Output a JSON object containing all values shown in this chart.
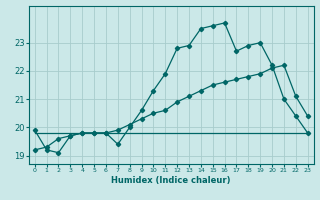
{
  "xlabel": "Humidex (Indice chaleur)",
  "bg_color": "#cbe8e8",
  "grid_color": "#a8cccc",
  "line_color": "#006666",
  "xlim": [
    -0.5,
    23.5
  ],
  "ylim": [
    18.7,
    24.3
  ],
  "yticks": [
    19,
    20,
    21,
    22,
    23
  ],
  "xticks": [
    0,
    1,
    2,
    3,
    4,
    5,
    6,
    7,
    8,
    9,
    10,
    11,
    12,
    13,
    14,
    15,
    16,
    17,
    18,
    19,
    20,
    21,
    22,
    23
  ],
  "line1_x": [
    0,
    1,
    2,
    3,
    4,
    5,
    6,
    7,
    8,
    9,
    10,
    11,
    12,
    13,
    14,
    15,
    16,
    17,
    18,
    19,
    20,
    21,
    22,
    23
  ],
  "line1_y": [
    19.9,
    19.2,
    19.1,
    19.7,
    19.8,
    19.8,
    19.8,
    19.4,
    20.0,
    20.6,
    21.3,
    21.9,
    22.8,
    22.9,
    23.5,
    23.6,
    23.7,
    22.7,
    22.9,
    23.0,
    22.2,
    21.0,
    20.4,
    19.8
  ],
  "line2_x": [
    0,
    1,
    2,
    3,
    4,
    5,
    6,
    7,
    8,
    9,
    10,
    11,
    12,
    13,
    14,
    15,
    16,
    17,
    18,
    19,
    20,
    21,
    22,
    23
  ],
  "line2_y": [
    19.2,
    19.3,
    19.6,
    19.7,
    19.8,
    19.8,
    19.8,
    19.9,
    20.1,
    20.3,
    20.5,
    20.6,
    20.9,
    21.1,
    21.3,
    21.5,
    21.6,
    21.7,
    21.8,
    21.9,
    22.1,
    22.2,
    21.1,
    20.4
  ],
  "line3_x": [
    0,
    10,
    19,
    23
  ],
  "line3_y": [
    19.8,
    19.8,
    19.8,
    19.8
  ]
}
